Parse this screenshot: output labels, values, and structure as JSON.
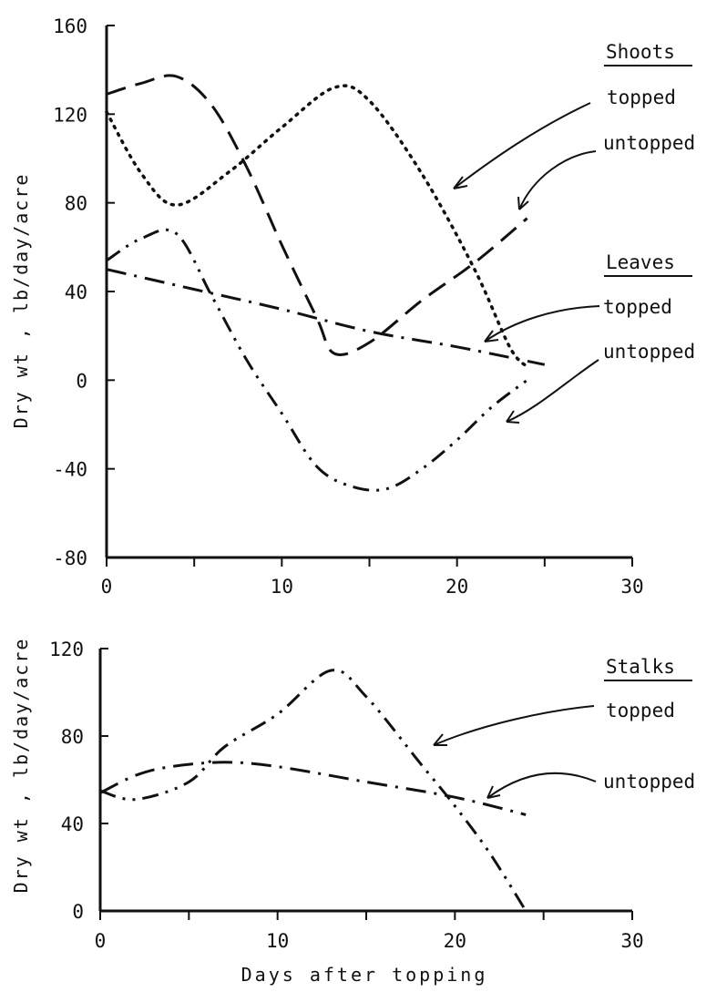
{
  "chart_data": [
    {
      "type": "line",
      "xlabel": "",
      "ylabel": "Dry wt , lb/day/acre",
      "xlim": [
        0,
        30
      ],
      "ylim": [
        -80,
        160
      ],
      "xticks": [
        "0",
        "10",
        "20",
        "30"
      ],
      "yticks": [
        "160",
        "120",
        "80",
        "40",
        "0",
        "-40",
        "-80"
      ],
      "grid": false,
      "legend_groups": [
        {
          "title": "Shoots",
          "entries": [
            "topped",
            "untopped"
          ]
        },
        {
          "title": "Leaves",
          "entries": [
            "topped",
            "untopped"
          ]
        }
      ],
      "series": [
        {
          "name": "Shoots topped",
          "style": "dotted",
          "x": [
            0,
            2,
            4,
            7,
            10,
            13,
            15,
            18,
            21,
            23,
            24
          ],
          "y": [
            121,
            93,
            79,
            94,
            114,
            132,
            126,
            93,
            50,
            15,
            6
          ]
        },
        {
          "name": "Shoots untopped",
          "style": "dashed",
          "x": [
            0,
            2,
            4,
            6,
            8,
            10,
            12,
            13,
            15,
            18,
            21,
            24
          ],
          "y": [
            129,
            134,
            137,
            124,
            96,
            61,
            28,
            12,
            17,
            36,
            53,
            73
          ]
        },
        {
          "name": "Leaves topped",
          "style": "dash-dot",
          "x": [
            0,
            5,
            10,
            15,
            20,
            25
          ],
          "y": [
            50,
            41,
            32,
            22,
            15,
            7
          ]
        },
        {
          "name": "Leaves untopped",
          "style": "dash-dot-dot",
          "x": [
            0,
            2,
            4,
            6,
            8,
            10,
            12,
            14,
            16,
            18,
            20,
            22,
            24
          ],
          "y": [
            54,
            64,
            66,
            38,
            9,
            -15,
            -39,
            -48,
            -49,
            -40,
            -27,
            -12,
            0
          ]
        }
      ]
    },
    {
      "type": "line",
      "xlabel": "Days after topping",
      "ylabel": "Dry wt , lb/day/acre",
      "xlim": [
        0,
        30
      ],
      "ylim": [
        0,
        120
      ],
      "xticks": [
        "0",
        "10",
        "20",
        "30"
      ],
      "yticks": [
        "120",
        "80",
        "40",
        "0"
      ],
      "grid": false,
      "legend_groups": [
        {
          "title": "Stalks",
          "entries": [
            "topped",
            "untopped"
          ]
        }
      ],
      "series": [
        {
          "name": "Stalks topped",
          "style": "dash-dot-dot",
          "x": [
            0,
            2,
            5,
            7,
            10,
            13,
            15,
            18,
            20,
            22,
            24
          ],
          "y": [
            55,
            51,
            59,
            75,
            90,
            110,
            98,
            68,
            48,
            26,
            0
          ]
        },
        {
          "name": "Stalks untopped",
          "style": "dash-dot",
          "x": [
            0,
            2,
            4,
            7,
            10,
            15,
            20,
            24
          ],
          "y": [
            54,
            62,
            66,
            68,
            66,
            59,
            52,
            44
          ]
        }
      ]
    }
  ]
}
